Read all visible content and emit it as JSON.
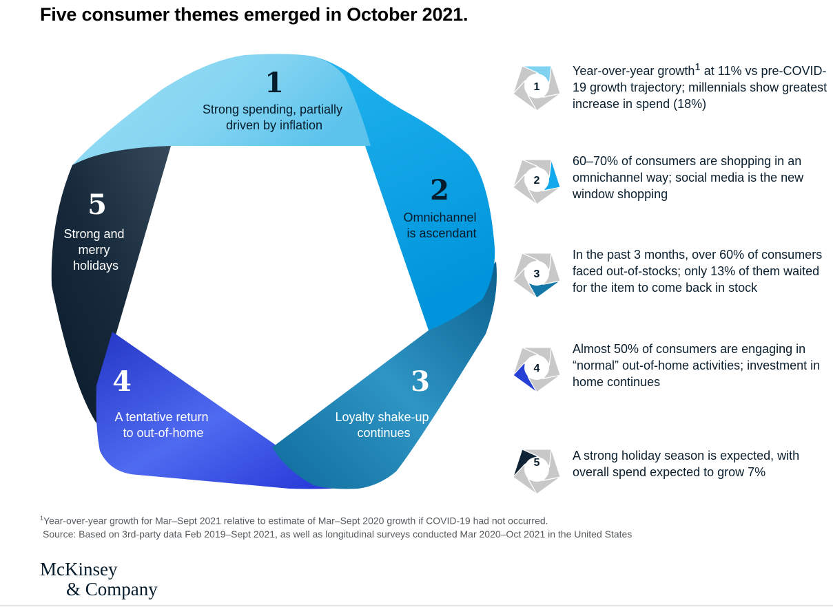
{
  "title": "Five consumer themes emerged in October 2021.",
  "colors": {
    "theme_1": "#7fd3f0",
    "theme_2": "#14a8ec",
    "theme_3": "#1378a8",
    "theme_4": "#2640d6",
    "theme_5": "#0f2236",
    "icon_grey": "#c8c8c8"
  },
  "segments": [
    {
      "number": "1",
      "label_lines": [
        "Strong spending, partially",
        "driven by inflation"
      ]
    },
    {
      "number": "2",
      "label_lines": [
        "Omnichannel",
        "is ascendant"
      ]
    },
    {
      "number": "3",
      "label_lines": [
        "Loyalty shake-up",
        "continues"
      ]
    },
    {
      "number": "4",
      "label_lines": [
        "A tentative return",
        "to out-of-home"
      ]
    },
    {
      "number": "5",
      "label_lines": [
        "Strong and",
        "merry",
        "holidays"
      ]
    }
  ],
  "themes": [
    {
      "number": "1",
      "text_before": "Year-over-year growth",
      "sup": "1",
      "text_after": " at 11% vs pre-COVID-19 growth trajectory; millennials show greatest increase in spend (18%)"
    },
    {
      "number": "2",
      "text_before": "60–70% of consumers are shopping in an omnichannel way; social media is the new window shopping",
      "sup": "",
      "text_after": ""
    },
    {
      "number": "3",
      "text_before": "In the past 3 months, over 60% of consumers faced out-of-stocks; only 13% of them waited for the item to come back in stock",
      "sup": "",
      "text_after": ""
    },
    {
      "number": "4",
      "text_before": "Almost 50% of consumers are engaging in “normal” out-of-home activities; investment in home continues",
      "sup": "",
      "text_after": ""
    },
    {
      "number": "5",
      "text_before": "A strong holiday season is expected, with overall spend expected to grow 7%",
      "sup": "",
      "text_after": ""
    }
  ],
  "footnote": {
    "marker": "1",
    "text": "Year-over-year growth for Mar–Sept 2021 relative to estimate of Mar–Sept 2020 growth if COVID-19 had not occurred.",
    "source": "Source: Based on 3rd-party data Feb 2019–Sept 2021, as well as longitudinal surveys conducted Mar 2020–Oct 2021 in the United States"
  },
  "logo": {
    "line1": "McKinsey",
    "line2": "& Company"
  }
}
